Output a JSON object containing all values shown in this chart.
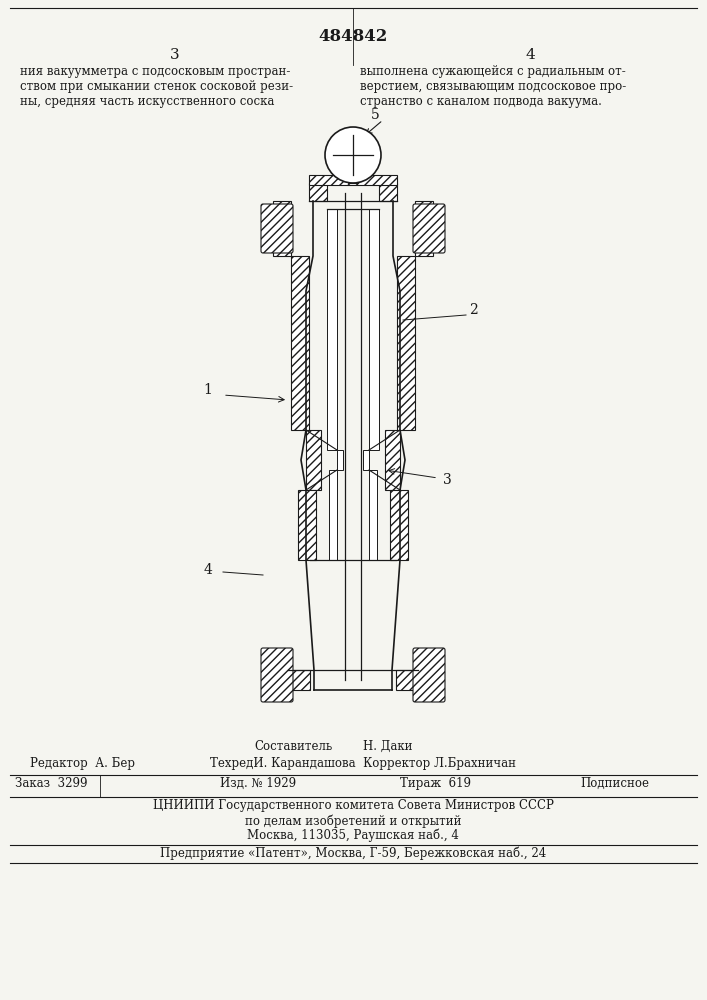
{
  "patent_number": "484842",
  "page_left": "3",
  "page_right": "4",
  "text_left": "ния вакуумметра с подсосковым простран-\nством при смыкании стенок сосковой рези-\nны, средняя часть искусственного соска",
  "text_right": "выполнена сужающейся с радиальным от-\nверстием, связывающим подсосковое про-\nстранство с каналом подвода вакуума.",
  "label_1": "1",
  "label_2": "2",
  "label_3": "3",
  "label_4": "4",
  "label_5": "5",
  "footer_sestavitel": "Составитель",
  "footer_name": "Н. Даки",
  "footer_redaktor": "Редактор  А. Бер",
  "footer_tehred": "ТехредИ. Карандашова  Корректор Л.Брахничан",
  "footer_zakaz": "Заказ  3299",
  "footer_izd": "Изд. № 1929",
  "footer_tirazh": "Тираж  619",
  "footer_podpisnoe": "Подписное",
  "footer_cniip": "ЦНИИПИ Государственного комитета Совета Министров СССР",
  "footer_po_delam": "по делам изобретений и открытий",
  "footer_moskva": "Москва, 113035, Раушская наб., 4",
  "footer_predpriyatie": "Предприятие «Патент», Москва, Г-59, Бережковская наб., 24",
  "bg_color": "#f5f5f0",
  "line_color": "#1a1a1a",
  "hatch_color": "#1a1a1a"
}
